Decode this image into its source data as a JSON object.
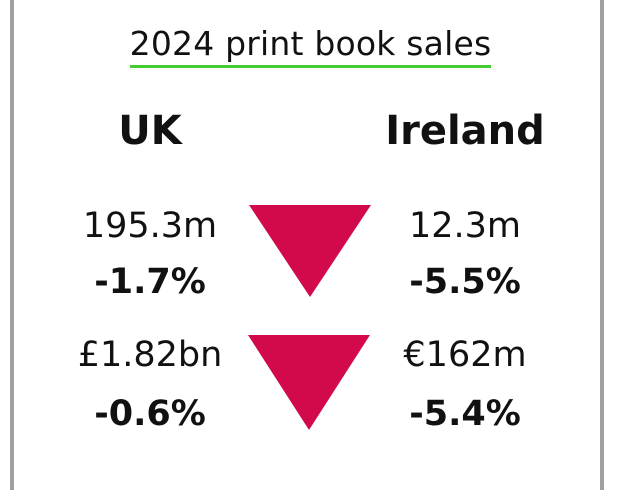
{
  "title": "2024 print book sales",
  "colors": {
    "accent_underline": "#44cc33",
    "down_arrow": "#d20a4b",
    "frame": "#a0a0a0"
  },
  "columns": {
    "left": {
      "country": "UK"
    },
    "right": {
      "country": "Ireland"
    }
  },
  "rows": [
    {
      "left_value": "195.3m",
      "left_change": "-1.7%",
      "right_value": "12.3m",
      "right_change": "-5.5%",
      "trend_icon": "down-triangle-icon"
    },
    {
      "left_value": "£1.82bn",
      "left_change": "-0.6%",
      "right_value": "€162m",
      "right_change": "-5.4%",
      "trend_icon": "down-triangle-icon"
    }
  ]
}
